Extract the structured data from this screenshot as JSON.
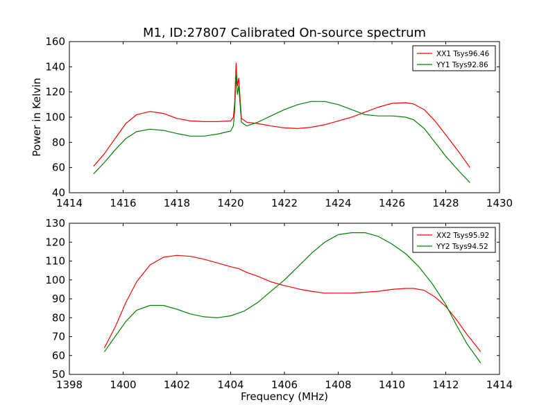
{
  "figure_title": "M1, ID:27807 Calibrated On-source spectrum",
  "colors": {
    "xx": "#ff0000",
    "yy": "#008000",
    "axes": "#000000",
    "background": "#ffffff"
  },
  "chart_data": [
    {
      "type": "line",
      "title": "M1, ID:27807 Calibrated On-source spectrum",
      "xlabel": "",
      "ylabel": "Power in Kelvin",
      "xlim": [
        1414,
        1430
      ],
      "ylim": [
        40,
        160
      ],
      "xticks": [
        1414,
        1416,
        1418,
        1420,
        1422,
        1424,
        1426,
        1428,
        1430
      ],
      "yticks": [
        40,
        60,
        80,
        100,
        120,
        140,
        160
      ],
      "grid": false,
      "legend_position": "top-right",
      "series": [
        {
          "name": "XX1 Tsys96.46",
          "color": "#ff0000",
          "x": [
            1414.9,
            1415.3,
            1415.7,
            1416.1,
            1416.5,
            1417.0,
            1417.5,
            1418.0,
            1418.5,
            1419.0,
            1419.5,
            1420.0,
            1420.1,
            1420.15,
            1420.2,
            1420.25,
            1420.3,
            1420.4,
            1420.6,
            1421.0,
            1421.5,
            1422.0,
            1422.5,
            1423.0,
            1423.5,
            1424.0,
            1424.5,
            1425.0,
            1425.5,
            1426.0,
            1426.5,
            1426.8,
            1427.2,
            1427.6,
            1428.0,
            1428.5,
            1428.9
          ],
          "values": [
            61,
            71,
            83,
            95,
            102,
            104.5,
            103,
            99,
            97,
            96.5,
            96.5,
            97,
            100,
            112,
            143,
            125,
            131,
            99,
            96,
            95,
            93,
            91.5,
            91,
            92,
            94,
            97,
            100,
            104,
            108,
            111,
            111.5,
            110.5,
            106,
            97,
            86,
            72,
            60
          ]
        },
        {
          "name": "YY1 Tsys92.86",
          "color": "#008000",
          "x": [
            1414.9,
            1415.3,
            1415.7,
            1416.1,
            1416.5,
            1417.0,
            1417.5,
            1418.0,
            1418.5,
            1419.0,
            1419.5,
            1420.0,
            1420.1,
            1420.15,
            1420.2,
            1420.25,
            1420.3,
            1420.4,
            1420.6,
            1421.0,
            1421.5,
            1422.0,
            1422.5,
            1423.0,
            1423.5,
            1424.0,
            1424.5,
            1425.0,
            1425.5,
            1426.0,
            1426.5,
            1426.8,
            1427.2,
            1427.6,
            1428.0,
            1428.5,
            1428.9
          ],
          "values": [
            55,
            64,
            74,
            83,
            88.5,
            90.5,
            89.5,
            87,
            85,
            85,
            86.5,
            89,
            93,
            105,
            133,
            118,
            125,
            96,
            93,
            96,
            101,
            106,
            110,
            112.5,
            112.5,
            110,
            106,
            102,
            101,
            101,
            100,
            98,
            91,
            80,
            69,
            57,
            48
          ]
        }
      ]
    },
    {
      "type": "line",
      "title": "",
      "xlabel": "Frequency (MHz)",
      "ylabel": "",
      "xlim": [
        1398,
        1414
      ],
      "ylim": [
        50,
        130
      ],
      "xticks": [
        1398,
        1400,
        1402,
        1404,
        1406,
        1408,
        1410,
        1412,
        1414
      ],
      "yticks": [
        50,
        60,
        70,
        80,
        90,
        100,
        110,
        120,
        130
      ],
      "grid": false,
      "legend_position": "top-right",
      "series": [
        {
          "name": "XX2 Tsys95.92",
          "color": "#ff0000",
          "x": [
            1399.3,
            1399.7,
            1400.1,
            1400.5,
            1401.0,
            1401.5,
            1402.0,
            1402.5,
            1403.0,
            1403.5,
            1404.0,
            1404.3,
            1404.6,
            1405.0,
            1405.5,
            1406.0,
            1406.3,
            1406.6,
            1407.0,
            1407.5,
            1408.0,
            1408.5,
            1409.0,
            1409.5,
            1410.0,
            1410.5,
            1410.8,
            1411.2,
            1411.6,
            1412.0,
            1412.4,
            1412.8,
            1413.3
          ],
          "values": [
            64,
            75,
            88,
            99,
            108,
            112,
            113,
            112.5,
            111,
            109,
            107,
            106,
            104,
            102,
            99,
            97,
            96,
            95,
            94,
            93,
            93,
            93,
            93.5,
            94,
            95,
            95.5,
            95.5,
            94.5,
            91,
            86,
            79,
            71,
            62
          ]
        },
        {
          "name": "YY2 Tsys94.52",
          "color": "#008000",
          "x": [
            1399.3,
            1399.7,
            1400.1,
            1400.5,
            1401.0,
            1401.5,
            1402.0,
            1402.5,
            1403.0,
            1403.5,
            1404.0,
            1404.5,
            1405.0,
            1405.5,
            1406.0,
            1406.5,
            1407.0,
            1407.5,
            1408.0,
            1408.5,
            1409.0,
            1409.5,
            1410.0,
            1410.5,
            1411.0,
            1411.5,
            1412.0,
            1412.4,
            1412.8,
            1413.3
          ],
          "values": [
            62,
            70,
            78,
            84,
            86.5,
            86.5,
            84.5,
            82,
            80.5,
            80,
            81,
            83.5,
            88,
            94,
            100,
            107,
            114,
            120,
            124,
            125,
            125,
            123,
            119,
            114,
            107,
            98,
            87,
            76,
            66,
            56
          ]
        }
      ]
    }
  ]
}
